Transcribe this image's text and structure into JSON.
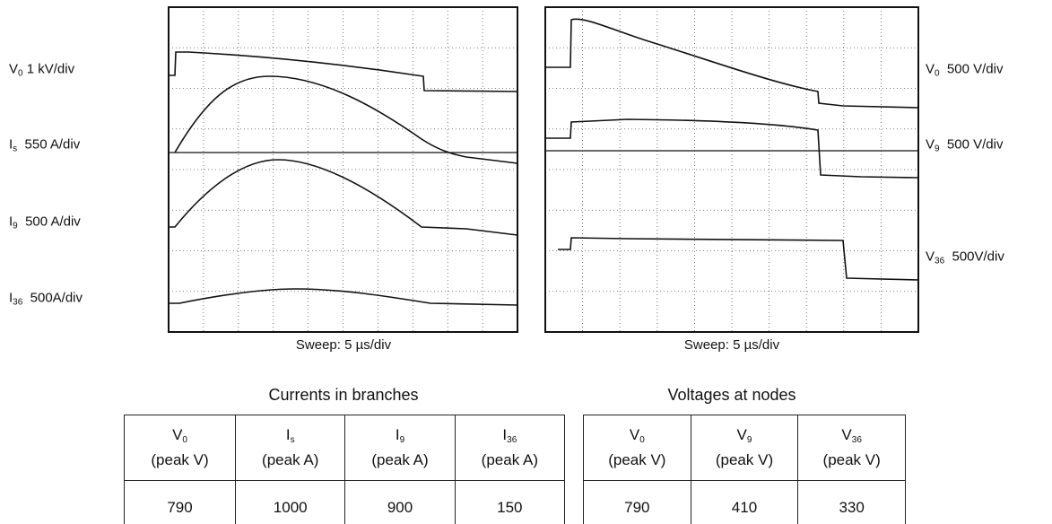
{
  "left_panel": {
    "channels": [
      {
        "symbol": "V",
        "sub": "0",
        "scale": "1 kV/div"
      },
      {
        "symbol": "I",
        "sub": "s",
        "scale": "550 A/div"
      },
      {
        "symbol": "I",
        "sub": "9",
        "scale": "500 A/div"
      },
      {
        "symbol": "I",
        "sub": "36",
        "scale": "500A/div"
      }
    ],
    "sweep": "Sweep: 5 µs/div"
  },
  "right_panel": {
    "channels": [
      {
        "symbol": "V",
        "sub": "0",
        "scale": "500 V/div"
      },
      {
        "symbol": "V",
        "sub": "9",
        "scale": "500 V/div"
      },
      {
        "symbol": "V",
        "sub": "36",
        "scale": "500V/div"
      }
    ],
    "sweep": "Sweep: 5 µs/div"
  },
  "tables": [
    {
      "title": "Currents in branches",
      "columns": [
        {
          "symbol": "V",
          "sub": "0",
          "unit": "(peak V)"
        },
        {
          "symbol": "I",
          "sub": "s",
          "unit": "(peak A)"
        },
        {
          "symbol": "I",
          "sub": "9",
          "unit": "(peak A)"
        },
        {
          "symbol": "I",
          "sub": "36",
          "unit": "(peak A)"
        }
      ],
      "values": [
        790,
        1000,
        900,
        150
      ]
    },
    {
      "title": "Voltages at nodes",
      "columns": [
        {
          "symbol": "V",
          "sub": "0",
          "unit": "(peak V)"
        },
        {
          "symbol": "V",
          "sub": "9",
          "unit": "(peak V)"
        },
        {
          "symbol": "V",
          "sub": "36",
          "unit": "(peak V)"
        }
      ],
      "values": [
        790,
        410,
        330
      ]
    }
  ]
}
